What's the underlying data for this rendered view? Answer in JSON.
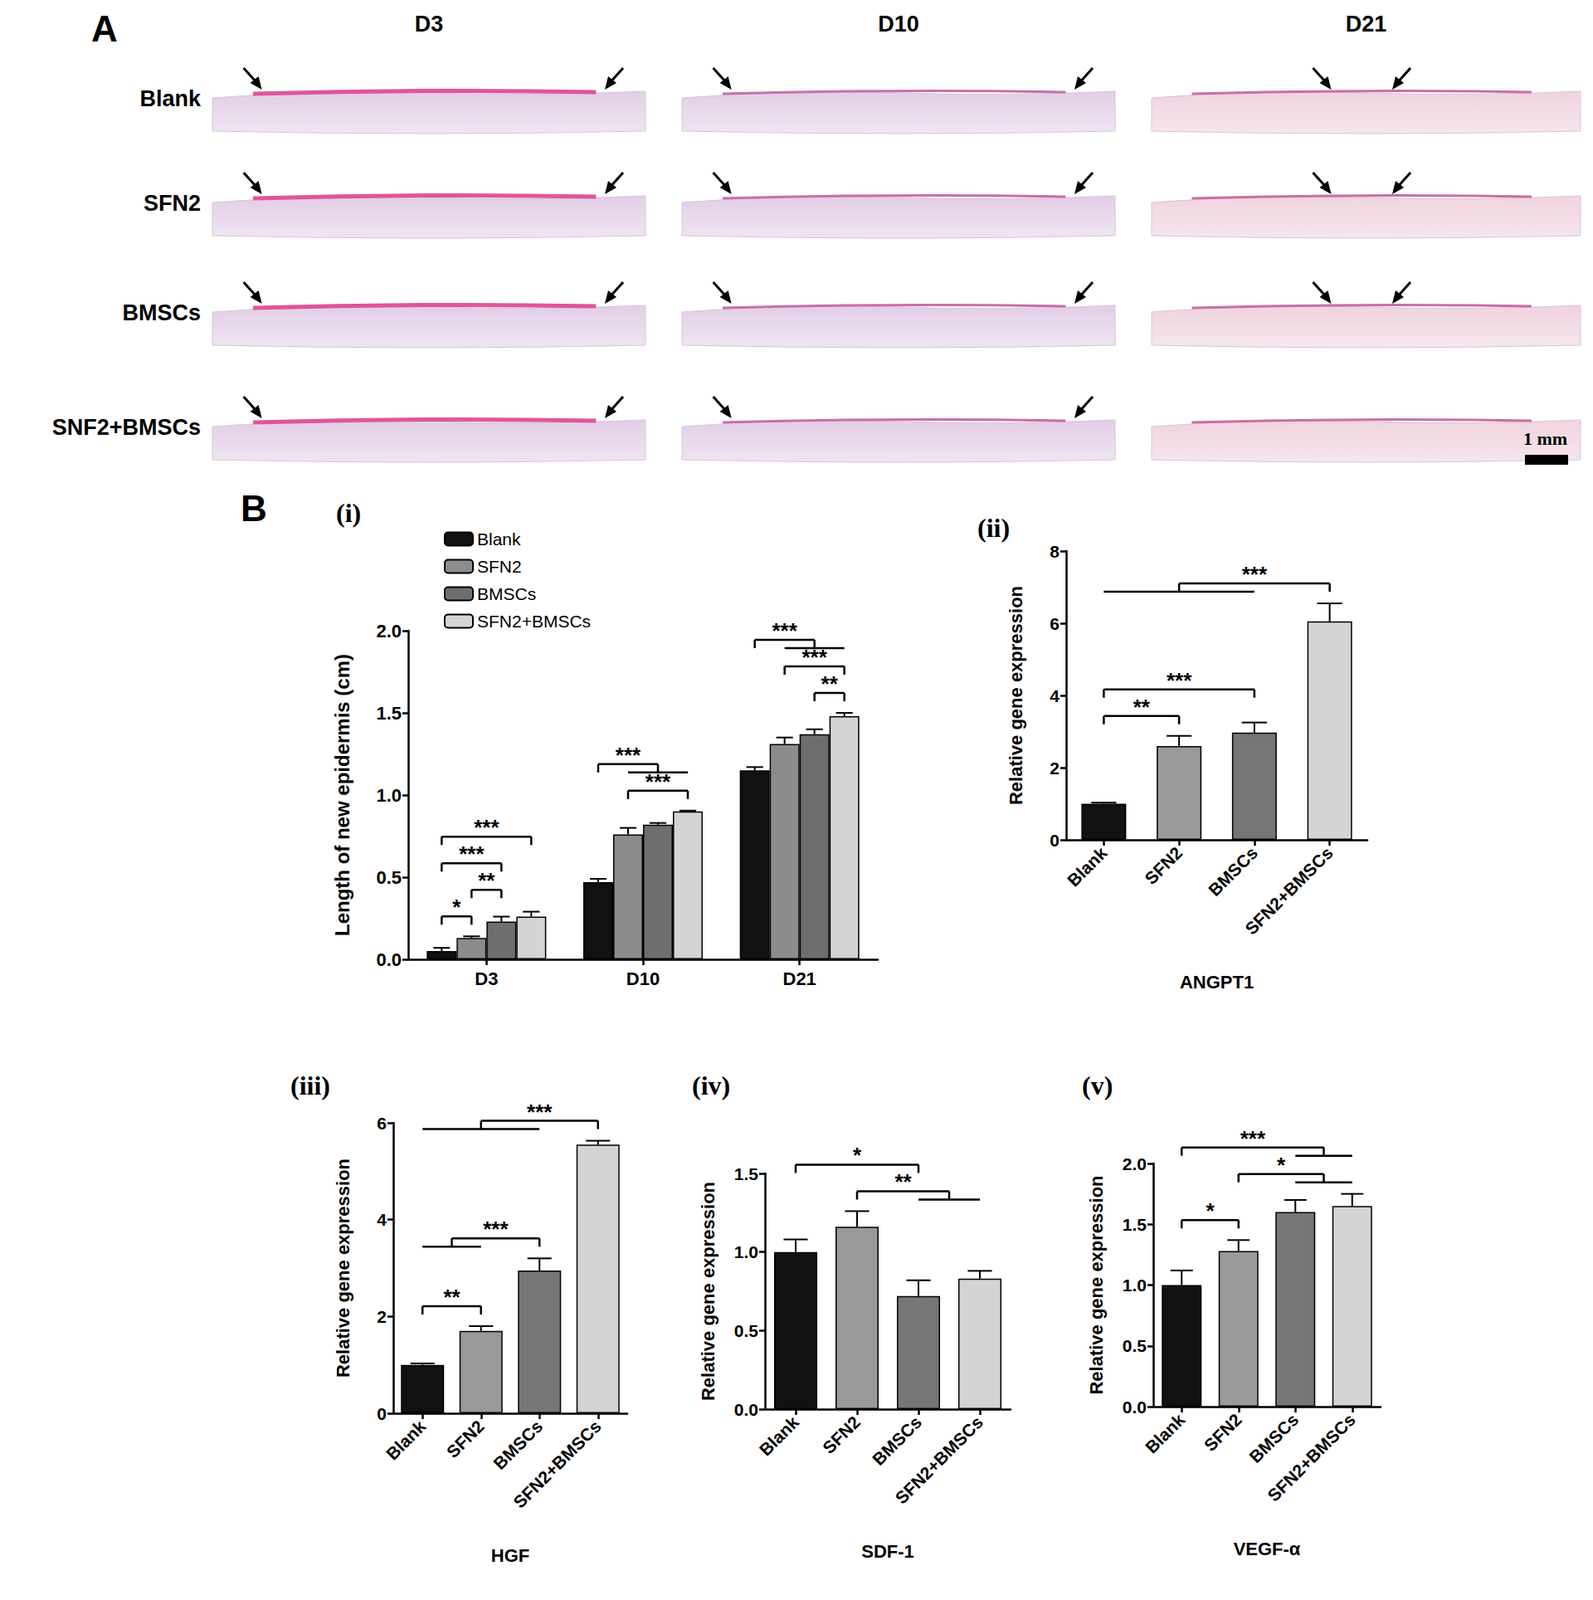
{
  "panel_a": {
    "label": "A",
    "columns": [
      "D3",
      "D10",
      "D21"
    ],
    "rows": [
      "Blank",
      "SFN2",
      "BMSCs",
      "SNF2+BMSCs"
    ],
    "scale_bar": "1 mm"
  },
  "panel_b": {
    "label": "B"
  },
  "chart_data": [
    {
      "type": "bar",
      "panel": "(i)",
      "categories": [
        "D3",
        "D10",
        "D21"
      ],
      "y_label": "Length of new epidermis (cm)",
      "ylim": [
        0,
        2.0
      ],
      "yticks": [
        {
          "value": 0,
          "label": "0.0"
        },
        {
          "value": 0.5,
          "label": "0.5"
        },
        {
          "value": 1.0,
          "label": "1.0"
        },
        {
          "value": 1.5,
          "label": "1.5"
        },
        {
          "value": 2.0,
          "label": "2.0"
        }
      ],
      "grid": false,
      "legend": "upper left",
      "series": [
        {
          "name": "Blank",
          "color": "#111111",
          "values": [
            0.05,
            0.47,
            1.15
          ],
          "errors": [
            0.02,
            0.02,
            0.02
          ]
        },
        {
          "name": "SFN2",
          "color": "#8c8c8c",
          "values": [
            0.13,
            0.76,
            1.31
          ],
          "errors": [
            0.01,
            0.04,
            0.04
          ]
        },
        {
          "name": "BMSCs",
          "color": "#6e6e6e",
          "values": [
            0.23,
            0.82,
            1.37
          ],
          "errors": [
            0.03,
            0.01,
            0.03
          ]
        },
        {
          "name": "SFN2+BMSCs",
          "color": "#d4d4d4",
          "values": [
            0.26,
            0.9,
            1.48
          ],
          "errors": [
            0.03,
            0.005,
            0.02
          ]
        }
      ],
      "significance": [
        {
          "category": "D3",
          "a": [
            "Blank"
          ],
          "b": [
            "SFN2"
          ],
          "label": "*"
        },
        {
          "category": "D3",
          "a": [
            "SFN2"
          ],
          "b": [
            "BMSCs"
          ],
          "label": "**"
        },
        {
          "category": "D3",
          "a": [
            "Blank"
          ],
          "b": [
            "BMSCs"
          ],
          "label": "***"
        },
        {
          "category": "D3",
          "a": [
            "Blank"
          ],
          "b": [
            "SFN2+BMSCs"
          ],
          "label": "***"
        },
        {
          "category": "D10",
          "a": [
            "SFN2"
          ],
          "b": [
            "SFN2+BMSCs"
          ],
          "label": "***"
        },
        {
          "category": "D10",
          "a": [
            "Blank"
          ],
          "b": [
            "SFN2",
            "BMSCs",
            "SFN2+BMSCs"
          ],
          "label": "***"
        },
        {
          "category": "D21",
          "a": [
            "BMSCs"
          ],
          "b": [
            "SFN2+BMSCs"
          ],
          "label": "**"
        },
        {
          "category": "D21",
          "a": [
            "SFN2"
          ],
          "b": [
            "SFN2+BMSCs"
          ],
          "label": "***"
        },
        {
          "category": "D21",
          "a": [
            "Blank"
          ],
          "b": [
            "SFN2",
            "BMSCs",
            "SFN2+BMSCs"
          ],
          "label": "***"
        }
      ]
    },
    {
      "type": "bar",
      "panel": "(ii)",
      "x_label": "ANGPT1",
      "y_label": "Relative gene expression",
      "categories": [
        "Blank",
        "SFN2",
        "BMSCs",
        "SFN2+BMSCs"
      ],
      "values": [
        1.0,
        2.6,
        2.97,
        6.05
      ],
      "errors": [
        0.03,
        0.28,
        0.28,
        0.5
      ],
      "colors": [
        "#111111",
        "#9a9a9a",
        "#767676",
        "#d4d4d4"
      ],
      "ylim": [
        0,
        8
      ],
      "yticks": [
        0,
        2,
        4,
        6,
        8
      ],
      "grid": false,
      "significance": [
        {
          "a": [
            "Blank"
          ],
          "b": [
            "SFN2"
          ],
          "label": "**"
        },
        {
          "a": [
            "Blank"
          ],
          "b": [
            "BMSCs"
          ],
          "label": "***"
        },
        {
          "a": [
            "Blank",
            "SFN2",
            "BMSCs"
          ],
          "b": [
            "SFN2+BMSCs"
          ],
          "label": "***"
        }
      ]
    },
    {
      "type": "bar",
      "panel": "(iii)",
      "x_label": "HGF",
      "y_label": "Relative gene expression",
      "categories": [
        "Blank",
        "SFN2",
        "BMSCs",
        "SFN2+BMSCs"
      ],
      "values": [
        1.0,
        1.7,
        2.95,
        5.55
      ],
      "errors": [
        0.03,
        0.1,
        0.25,
        0.08
      ],
      "colors": [
        "#111111",
        "#9a9a9a",
        "#767676",
        "#d4d4d4"
      ],
      "ylim": [
        0,
        6
      ],
      "yticks": [
        0,
        2,
        4,
        6
      ],
      "grid": false,
      "significance": [
        {
          "a": [
            "Blank"
          ],
          "b": [
            "SFN2"
          ],
          "label": "**"
        },
        {
          "a": [
            "Blank",
            "SFN2"
          ],
          "b": [
            "BMSCs"
          ],
          "label": "***"
        },
        {
          "a": [
            "Blank",
            "SFN2",
            "BMSCs"
          ],
          "b": [
            "SFN2+BMSCs"
          ],
          "label": "***"
        }
      ]
    },
    {
      "type": "bar",
      "panel": "(iv)",
      "x_label": "SDF-1",
      "y_label": "Relative gene expression",
      "categories": [
        "Blank",
        "SFN2",
        "BMSCs",
        "SFN2+BMSCs"
      ],
      "values": [
        1.0,
        1.16,
        0.72,
        0.83
      ],
      "errors": [
        0.08,
        0.1,
        0.1,
        0.05
      ],
      "colors": [
        "#111111",
        "#9a9a9a",
        "#767676",
        "#d4d4d4"
      ],
      "ylim": [
        0,
        1.5
      ],
      "yticks": [
        {
          "value": 0,
          "label": "0.0"
        },
        {
          "value": 0.5,
          "label": "0.5"
        },
        {
          "value": 1.0,
          "label": "1.0"
        },
        {
          "value": 1.5,
          "label": "1.5"
        }
      ],
      "grid": false,
      "significance": [
        {
          "a": [
            "SFN2"
          ],
          "b": [
            "BMSCs",
            "SFN2+BMSCs"
          ],
          "label": "**"
        },
        {
          "a": [
            "Blank"
          ],
          "b": [
            "BMSCs"
          ],
          "label": "*"
        }
      ]
    },
    {
      "type": "bar",
      "panel": "(v)",
      "x_label": "VEGF-α",
      "y_label": "Relative gene expression",
      "categories": [
        "Blank",
        "SFN2",
        "BMSCs",
        "SFN2+BMSCs"
      ],
      "values": [
        1.0,
        1.28,
        1.6,
        1.65
      ],
      "errors": [
        0.12,
        0.09,
        0.1,
        0.1
      ],
      "colors": [
        "#111111",
        "#9a9a9a",
        "#767676",
        "#d4d4d4"
      ],
      "ylim": [
        0,
        2.0
      ],
      "yticks": [
        {
          "value": 0,
          "label": "0.0"
        },
        {
          "value": 0.5,
          "label": "0.5"
        },
        {
          "value": 1.0,
          "label": "1.0"
        },
        {
          "value": 1.5,
          "label": "1.5"
        },
        {
          "value": 2.0,
          "label": "2.0"
        }
      ],
      "grid": false,
      "significance": [
        {
          "a": [
            "Blank"
          ],
          "b": [
            "SFN2"
          ],
          "label": "*"
        },
        {
          "a": [
            "SFN2"
          ],
          "b": [
            "BMSCs",
            "SFN2+BMSCs"
          ],
          "label": "*"
        },
        {
          "a": [
            "Blank"
          ],
          "b": [
            "BMSCs",
            "SFN2+BMSCs"
          ],
          "label": "***"
        }
      ]
    }
  ]
}
